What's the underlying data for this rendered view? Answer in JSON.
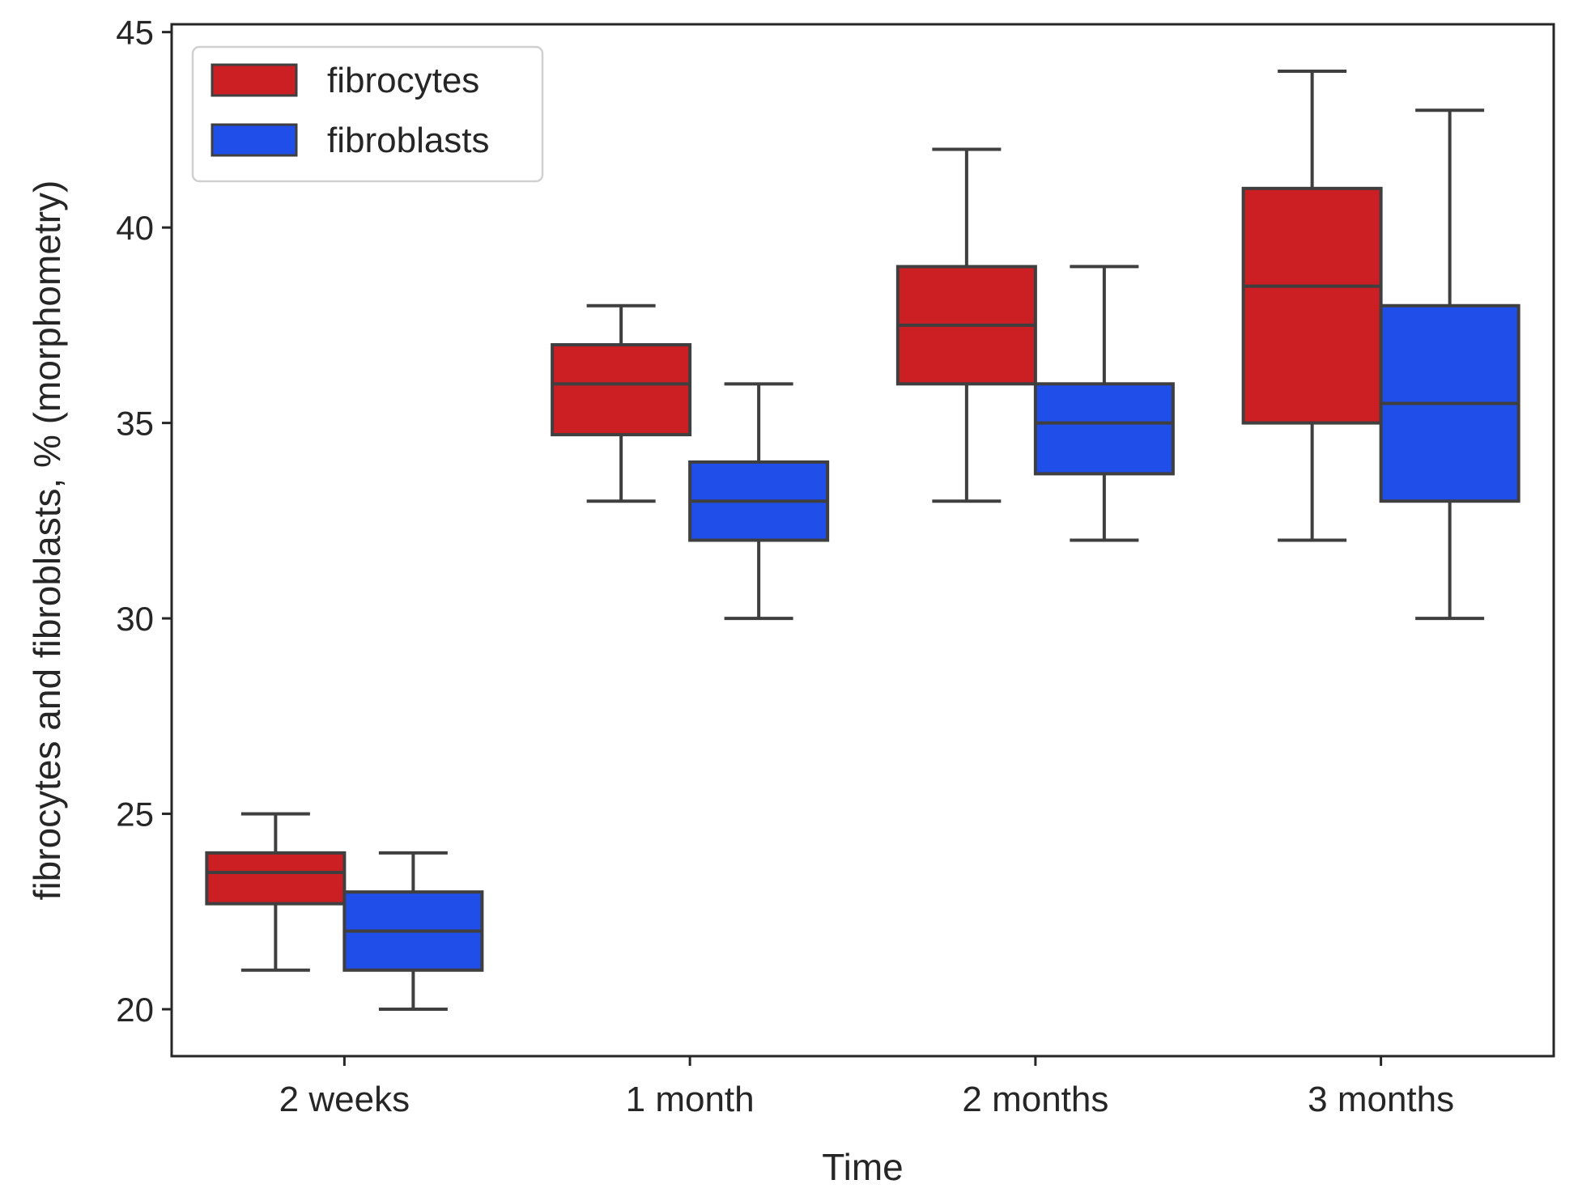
{
  "chart_data": {
    "type": "box",
    "title": "",
    "xlabel": "Time",
    "ylabel": "fibrocytes and fibroblasts, % (morphometry)",
    "ylim": [
      18.8,
      45.2
    ],
    "yticks": [
      20,
      25,
      30,
      35,
      40,
      45
    ],
    "grid": false,
    "legend_position": "top-left",
    "categories": [
      "2 weeks",
      "1 month",
      "2 months",
      "3 months"
    ],
    "series": [
      {
        "name": "fibrocytes",
        "color": "#cc1f24",
        "boxes": [
          {
            "whisker_low": 21,
            "q1": 22.7,
            "median": 23.5,
            "q3": 24,
            "whisker_high": 25
          },
          {
            "whisker_low": 33,
            "q1": 34.7,
            "median": 36,
            "q3": 37,
            "whisker_high": 38
          },
          {
            "whisker_low": 33,
            "q1": 36,
            "median": 37.5,
            "q3": 39,
            "whisker_high": 42
          },
          {
            "whisker_low": 32,
            "q1": 35,
            "median": 38.5,
            "q3": 41,
            "whisker_high": 44
          }
        ]
      },
      {
        "name": "fibroblasts",
        "color": "#1f4fe8",
        "boxes": [
          {
            "whisker_low": 20,
            "q1": 21,
            "median": 22,
            "q3": 23,
            "whisker_high": 24
          },
          {
            "whisker_low": 30,
            "q1": 32,
            "median": 33,
            "q3": 34,
            "whisker_high": 36
          },
          {
            "whisker_low": 32,
            "q1": 33.7,
            "median": 35,
            "q3": 36,
            "whisker_high": 39
          },
          {
            "whisker_low": 30,
            "q1": 33,
            "median": 35.5,
            "q3": 38,
            "whisker_high": 43
          }
        ]
      }
    ],
    "line_color": "#3f3f3f"
  }
}
